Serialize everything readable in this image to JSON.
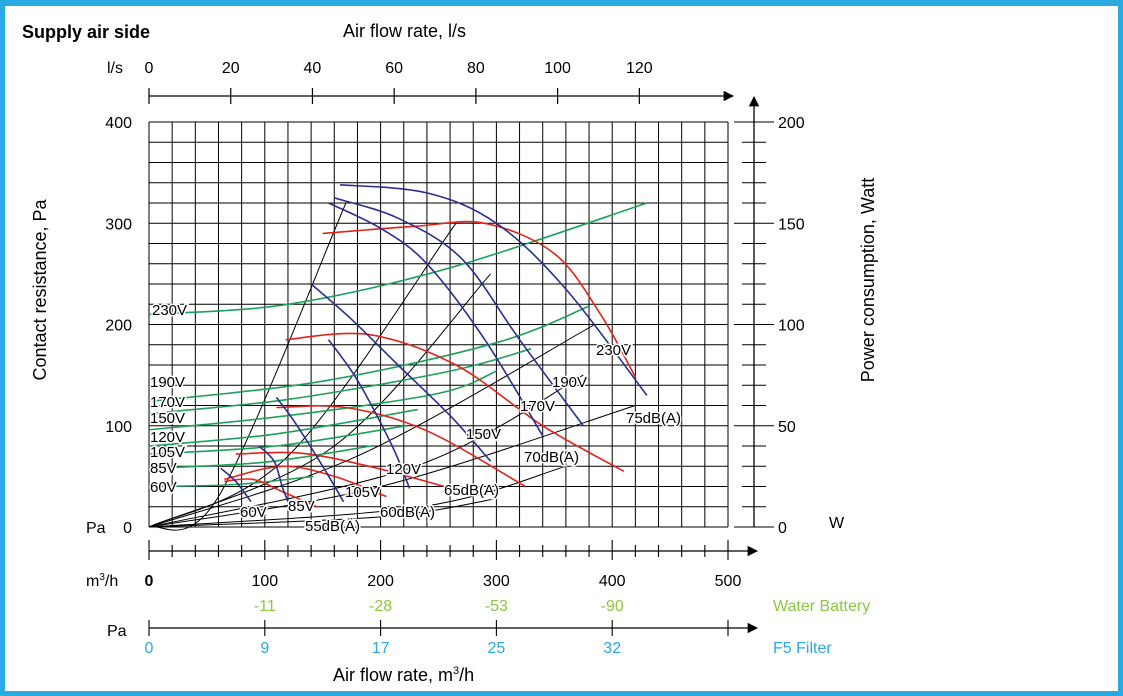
{
  "colors": {
    "frame": "#29aae1",
    "grid": "#000000",
    "pressure_curve": "#2b2f8f",
    "sound_curve": "#e2231a",
    "power_curve": "#1ea05a",
    "water_battery": "#8dc63f",
    "filter": "#29aae1"
  },
  "chart_data": {
    "type": "line",
    "title": "Supply air side",
    "top_axis": {
      "label": "Air flow rate, l/s",
      "unit_label": "l/s",
      "ticks": [
        "0",
        "20",
        "40",
        "60",
        "80",
        "100",
        "120"
      ],
      "range": [
        0,
        141.7
      ]
    },
    "x_axis": {
      "label": "Air flow rate, m³/h",
      "unit_label": "m³/h",
      "ticks": [
        "0",
        "100",
        "200",
        "300",
        "400",
        "500"
      ],
      "range": [
        0,
        500
      ]
    },
    "y_left": {
      "label": "Contact resistance, Pa",
      "unit_label": "Pa",
      "ticks": [
        "0",
        "100",
        "200",
        "300",
        "400"
      ],
      "range": [
        0,
        400
      ]
    },
    "y_right": {
      "label": "Power consumption, Watt",
      "unit_label": "W",
      "ticks": [
        "0",
        "50",
        "100",
        "150",
        "200"
      ],
      "range": [
        0,
        200
      ]
    },
    "water_battery": {
      "label": "Water Battery",
      "points": [
        {
          "x": 100,
          "value": "-11"
        },
        {
          "x": 200,
          "value": "-28"
        },
        {
          "x": 300,
          "value": "-53"
        },
        {
          "x": 400,
          "value": "-90"
        }
      ]
    },
    "f5_filter": {
      "label": "F5 Filter",
      "unit_label": "Pa",
      "points": [
        {
          "x": 0,
          "value": "0"
        },
        {
          "x": 100,
          "value": "9"
        },
        {
          "x": 200,
          "value": "17"
        },
        {
          "x": 300,
          "value": "25"
        },
        {
          "x": 400,
          "value": "32"
        }
      ]
    },
    "pressure_curves": [
      {
        "label": "60V",
        "points": [
          [
            62,
            58
          ],
          [
            75,
            45
          ],
          [
            88,
            25
          ]
        ]
      },
      {
        "label": "85V",
        "points": [
          [
            95,
            80
          ],
          [
            108,
            65
          ],
          [
            115,
            40
          ],
          [
            120,
            25
          ]
        ]
      },
      {
        "label": "105V",
        "points": [
          [
            110,
            128
          ],
          [
            125,
            105
          ],
          [
            150,
            60
          ],
          [
            168,
            25
          ]
        ]
      },
      {
        "label": "120V",
        "points": [
          [
            155,
            185
          ],
          [
            180,
            145
          ],
          [
            210,
            80
          ],
          [
            225,
            38
          ]
        ]
      },
      {
        "label": "150V",
        "points": [
          [
            140,
            240
          ],
          [
            175,
            205
          ],
          [
            215,
            160
          ],
          [
            260,
            110
          ],
          [
            295,
            65
          ]
        ]
      },
      {
        "label": "170V",
        "points": [
          [
            155,
            320
          ],
          [
            200,
            295
          ],
          [
            240,
            260
          ],
          [
            290,
            185
          ],
          [
            340,
            90
          ]
        ]
      },
      {
        "label": "190V",
        "points": [
          [
            160,
            325
          ],
          [
            215,
            305
          ],
          [
            270,
            265
          ],
          [
            320,
            185
          ],
          [
            375,
            100
          ]
        ]
      },
      {
        "label": "230V",
        "points": [
          [
            165,
            338
          ],
          [
            240,
            330
          ],
          [
            300,
            300
          ],
          [
            360,
            235
          ],
          [
            430,
            130
          ]
        ]
      }
    ],
    "sound_curves": [
      {
        "label": "55dB(A)",
        "points": [
          [
            65,
            45
          ],
          [
            90,
            47
          ],
          [
            115,
            35
          ],
          [
            145,
            20
          ]
        ]
      },
      {
        "label": "60dB(A)",
        "points": [
          [
            65,
            47
          ],
          [
            115,
            60
          ],
          [
            160,
            50
          ],
          [
            205,
            30
          ]
        ]
      },
      {
        "label": "65dB(A)",
        "points": [
          [
            75,
            72
          ],
          [
            130,
            73
          ],
          [
            190,
            60
          ],
          [
            255,
            40
          ]
        ]
      },
      {
        "label": "70dB(A)",
        "points": [
          [
            110,
            118
          ],
          [
            170,
            118
          ],
          [
            240,
            95
          ],
          [
            325,
            40
          ]
        ]
      },
      {
        "label": "75dB(A)",
        "points": [
          [
            118,
            185
          ],
          [
            190,
            190
          ],
          [
            265,
            160
          ],
          [
            340,
            100
          ],
          [
            410,
            55
          ]
        ]
      },
      {
        "label": "",
        "points": [
          [
            150,
            290
          ],
          [
            230,
            297
          ],
          [
            290,
            300
          ],
          [
            350,
            270
          ],
          [
            390,
            210
          ],
          [
            420,
            148
          ]
        ]
      }
    ],
    "power_curves": [
      {
        "label": "60V",
        "points": [
          [
            0,
            20
          ],
          [
            75,
            21
          ],
          [
            142,
            25
          ]
        ]
      },
      {
        "label": "85V",
        "points": [
          [
            0,
            29
          ],
          [
            100,
            32
          ],
          [
            192,
            40
          ]
        ]
      },
      {
        "label": "105V",
        "points": [
          [
            0,
            36
          ],
          [
            110,
            40
          ],
          [
            222,
            50
          ]
        ]
      },
      {
        "label": "120V",
        "points": [
          [
            0,
            40
          ],
          [
            110,
            46
          ],
          [
            232,
            58
          ]
        ]
      },
      {
        "label": "150V",
        "points": [
          [
            0,
            48
          ],
          [
            120,
            55
          ],
          [
            250,
            66
          ],
          [
            300,
            77
          ]
        ]
      },
      {
        "label": "170V",
        "points": [
          [
            0,
            56
          ],
          [
            120,
            63
          ],
          [
            260,
            77
          ],
          [
            330,
            88
          ]
        ]
      },
      {
        "label": "190V",
        "points": [
          [
            0,
            62
          ],
          [
            150,
            72
          ],
          [
            300,
            91
          ],
          [
            380,
            109
          ]
        ]
      },
      {
        "label": "230V",
        "points": [
          [
            0,
            105
          ],
          [
            120,
            110
          ],
          [
            260,
            128
          ],
          [
            430,
            160
          ]
        ]
      }
    ],
    "system_lines": [
      {
        "points": [
          [
            0,
            0
          ],
          [
            60,
            30
          ],
          [
            170,
            320
          ]
        ]
      },
      {
        "points": [
          [
            0,
            0
          ],
          [
            120,
            70
          ],
          [
            265,
            300
          ]
        ]
      },
      {
        "points": [
          [
            0,
            0
          ],
          [
            160,
            80
          ],
          [
            295,
            250
          ]
        ]
      },
      {
        "points": [
          [
            0,
            0
          ],
          [
            180,
            70
          ],
          [
            385,
            200
          ]
        ]
      },
      {
        "points": [
          [
            0,
            0
          ],
          [
            230,
            60
          ],
          [
            375,
            150
          ]
        ]
      },
      {
        "points": [
          [
            0,
            0
          ],
          [
            200,
            40
          ],
          [
            420,
            120
          ]
        ]
      },
      {
        "points": [
          [
            0,
            0
          ],
          [
            235,
            20
          ],
          [
            360,
            60
          ]
        ]
      },
      {
        "points": [
          [
            0,
            0
          ],
          [
            200,
            10
          ],
          [
            300,
            28
          ]
        ]
      }
    ],
    "labels": {
      "left_column": [
        "230V",
        "190V",
        "170V",
        "150V",
        "120V",
        "105V",
        "85V",
        "60V"
      ],
      "bottom_volts": [
        "60V",
        "85V",
        "105V",
        "120V",
        "150V",
        "170V",
        "190V",
        "230V"
      ],
      "sound": [
        "55dB(A)",
        "60dB(A)",
        "65dB(A)",
        "70dB(A)",
        "75dB(A)"
      ]
    }
  }
}
